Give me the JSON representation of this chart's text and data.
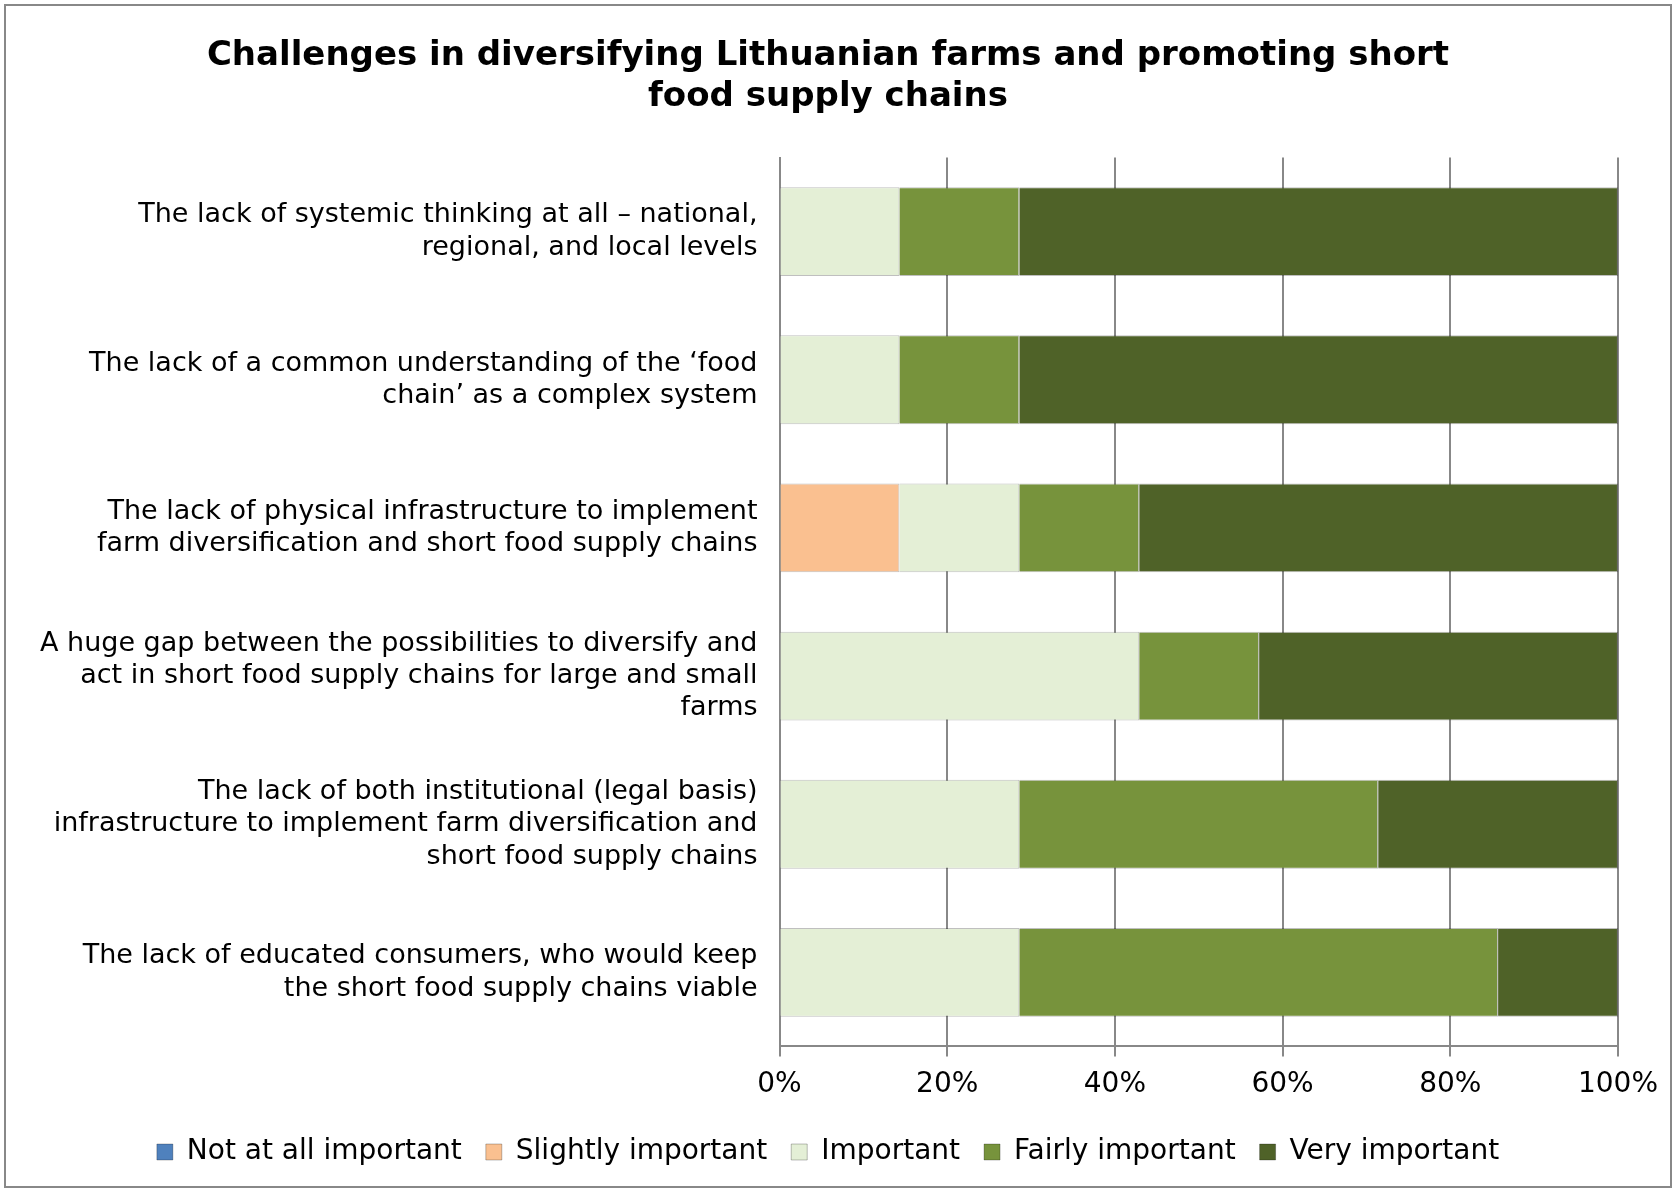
{
  "chart_data": {
    "type": "bar",
    "orientation": "horizontal",
    "stacked": true,
    "title": "Challenges in diversifying Lithuanian farms and promoting short food supply chains",
    "categories": [
      "The lack of systemic thinking at all – national, regional, and local levels",
      "The lack of a common understanding of the ‘food chain’ as a complex system",
      "The lack of physical infrastructure to implement farm diversification and short food supply chains",
      "A huge gap between the possibilities to diversify and act in short food supply chains for large and small farms",
      "The lack of both institutional (legal basis) infrastructure to implement farm diversification and short food supply chains",
      "The lack of educated consumers, who would keep the short food supply chains viable"
    ],
    "series": [
      {
        "name": "Not at all important",
        "color": "#4f81bd",
        "values": [
          0,
          0,
          0,
          0,
          0,
          0
        ]
      },
      {
        "name": "Slightly important",
        "color": "#fac090",
        "values": [
          0,
          0,
          14.3,
          0,
          0,
          0
        ]
      },
      {
        "name": "Important",
        "color": "#e4efd6",
        "values": [
          14.3,
          14.3,
          14.3,
          42.9,
          28.6,
          28.6
        ]
      },
      {
        "name": "Fairly important",
        "color": "#77933c",
        "values": [
          14.3,
          14.3,
          14.3,
          14.3,
          42.8,
          57.1
        ]
      },
      {
        "name": "Very important",
        "color": "#4f6228",
        "values": [
          71.4,
          71.4,
          57.1,
          42.8,
          28.6,
          14.3
        ]
      }
    ],
    "xlim": [
      0,
      100
    ],
    "xticks": [
      {
        "value": 0,
        "label": "0%"
      },
      {
        "value": 20,
        "label": "20%"
      },
      {
        "value": 40,
        "label": "40%"
      },
      {
        "value": 60,
        "label": "60%"
      },
      {
        "value": 80,
        "label": "80%"
      },
      {
        "value": 100,
        "label": "100%"
      }
    ],
    "grid": "x",
    "legend": "bottom"
  }
}
